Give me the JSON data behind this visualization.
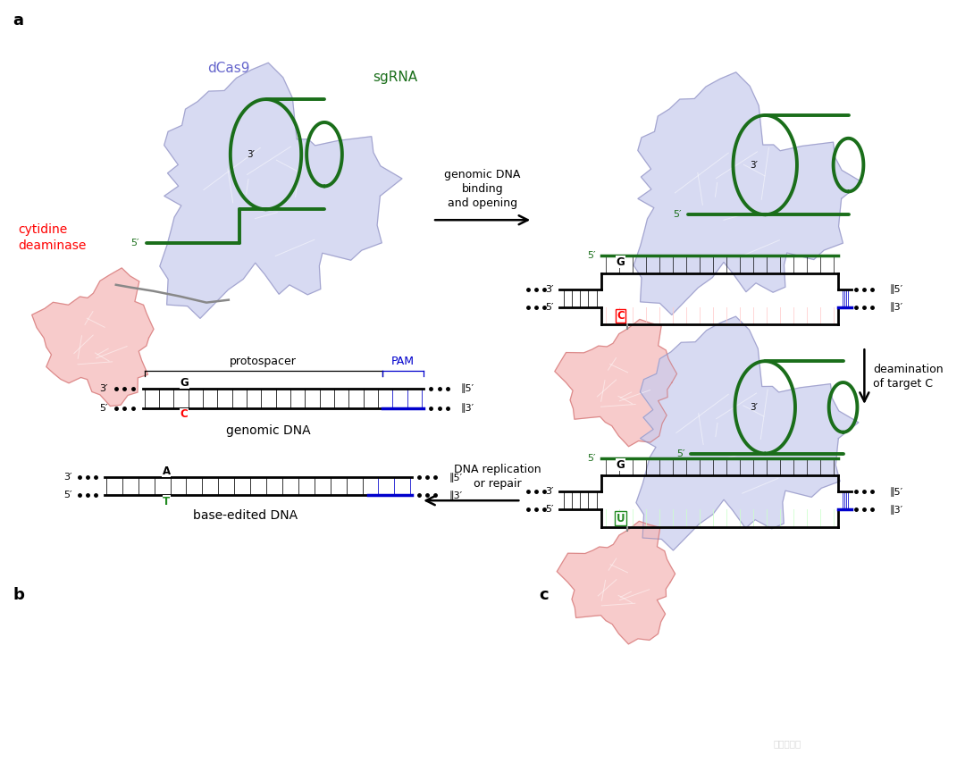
{
  "panel_a_label": "a",
  "panel_b_label": "b",
  "panel_c_label": "c",
  "label_dcas9": "dCas9",
  "label_sgrna": "sgRNA",
  "label_cytidine": "cytidine\ndeaminase",
  "label_genomic_dna": "genomic DNA",
  "label_protospacer": "protospacer",
  "label_pam": "PAM",
  "label_arrow1": "genomic DNA\nbinding\nand opening",
  "label_arrow2": "deamination\nof target C",
  "label_arrow3": "DNA replication\nor repair",
  "label_base_edited": "base-edited DNA",
  "color_dcas9_fill": "#c8ccee",
  "color_dcas9_edge": "#9090c0",
  "color_sgrna": "#1a6e1a",
  "color_deaminase_fill": "#f5b8b8",
  "color_deaminase_edge": "#d07070",
  "color_pam": "#0000cc",
  "color_label_dcas9": "#6666cc",
  "color_label_sgrna": "#1a6e1a",
  "color_label_cytidine": "red",
  "color_U_green": "#228B22",
  "color_T_green": "#228B22",
  "bg_color": "white",
  "figure_width": 10.8,
  "figure_height": 8.73
}
